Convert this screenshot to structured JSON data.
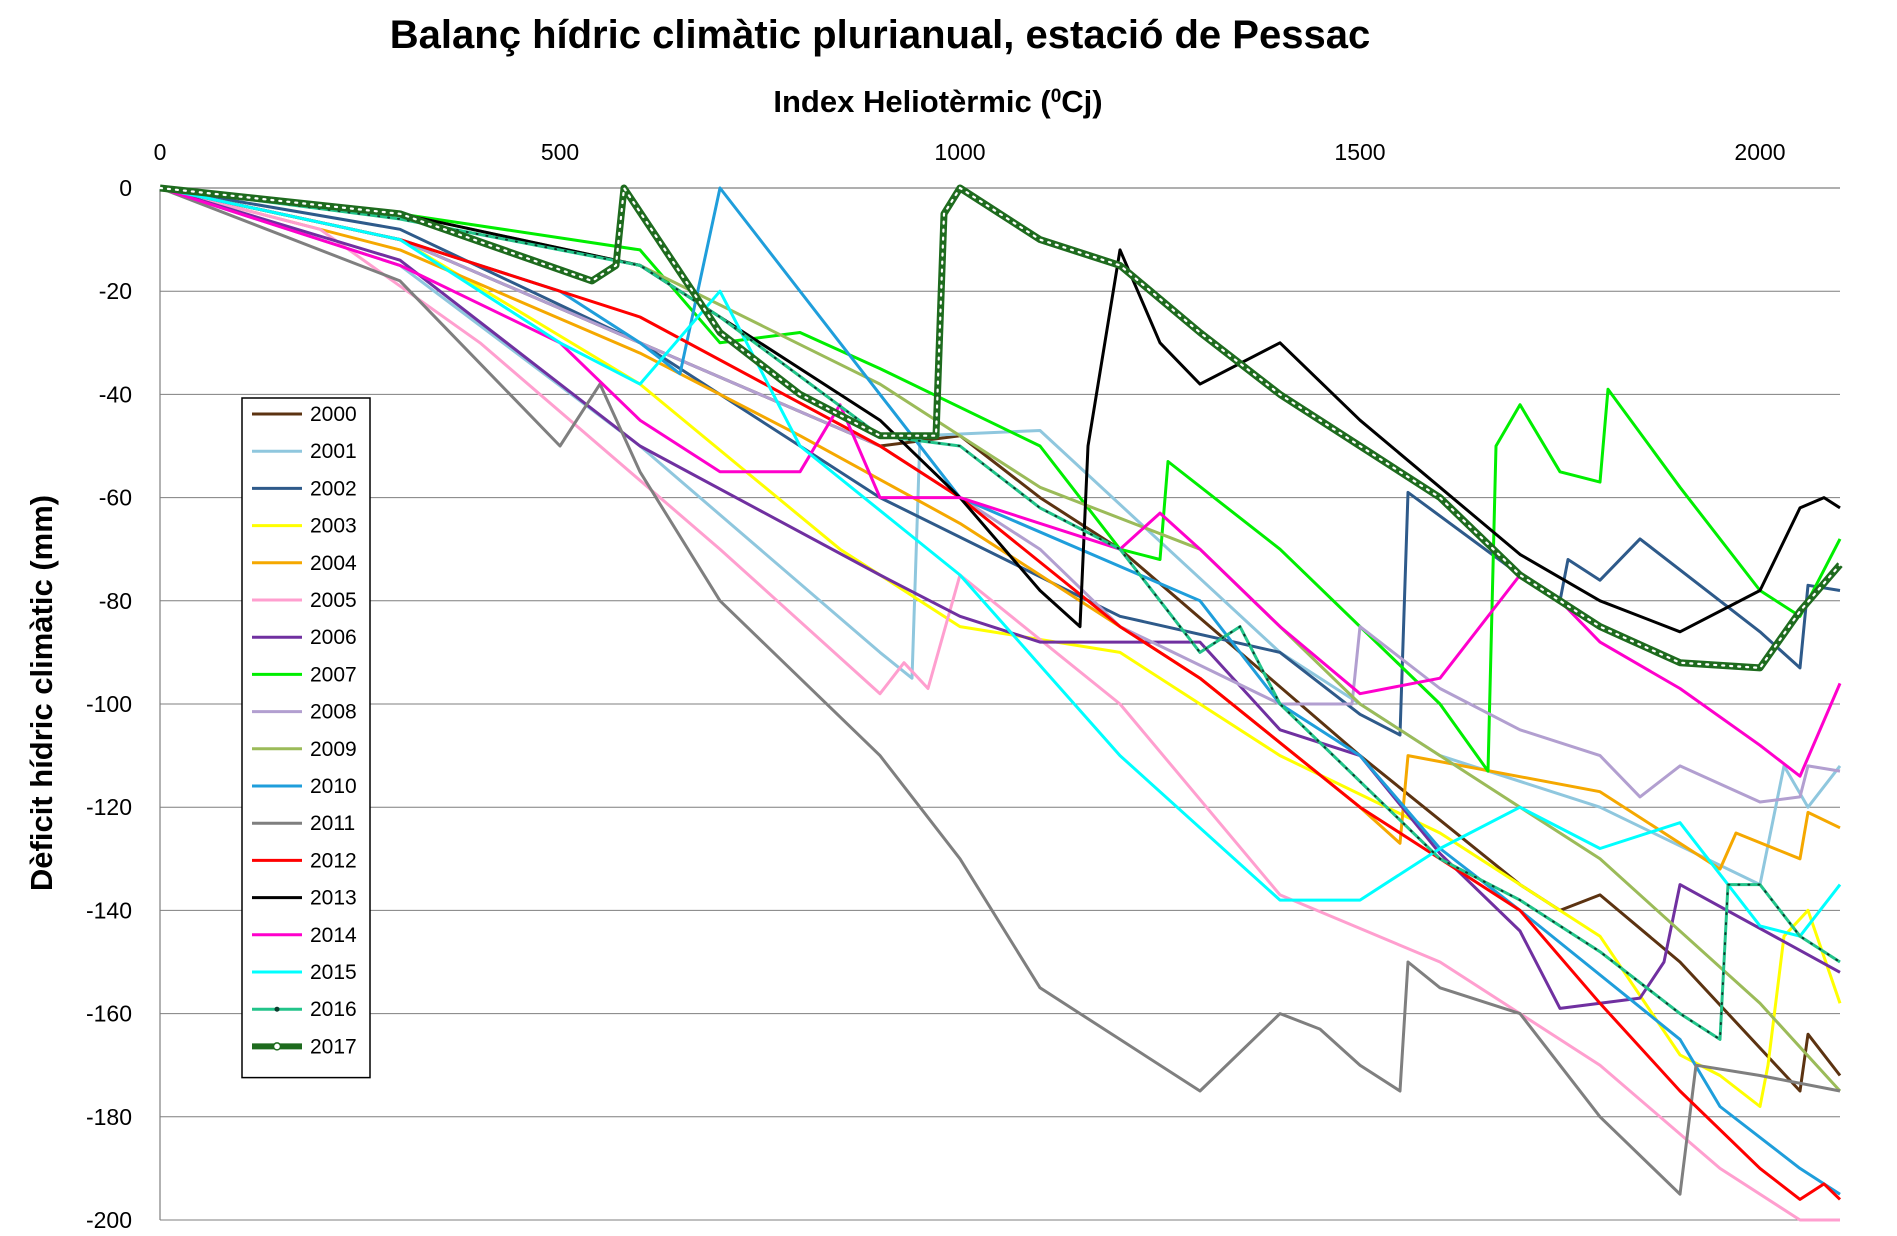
{
  "chart_data": {
    "type": "line",
    "title": "Balanç hídric climàtic plurianual, estació de Pessac",
    "xlabel": "Index Heliotèrmic (",
    "xlabel_sup": "0",
    "xlabel_tail": "Cj)",
    "ylabel": "Dèficit hídric climàtic (mm)",
    "x_axis_position": "top",
    "xlim": [
      0,
      2100
    ],
    "ylim": [
      -200,
      0
    ],
    "xticks": [
      "0",
      "500",
      "1000",
      "1500",
      "2000"
    ],
    "yticks": [
      "0",
      "-20",
      "-40",
      "-60",
      "-80",
      "-100",
      "-120",
      "-140",
      "-160",
      "-180",
      "-200"
    ],
    "grid": "horizontal",
    "legend_position": "left",
    "series": [
      {
        "name": "2000",
        "color": "#5c3311",
        "x": [
          0,
          300,
          600,
          900,
          1000,
          1100,
          1200,
          1500,
          1700,
          1750,
          1800,
          1900,
          2050,
          2060,
          2100
        ],
        "y": [
          0,
          -10,
          -30,
          -50,
          -48,
          -60,
          -70,
          -110,
          -135,
          -140,
          -137,
          -150,
          -175,
          -164,
          -172
        ]
      },
      {
        "name": "2001",
        "color": "#8fc7de",
        "x": [
          0,
          300,
          600,
          900,
          940,
          950,
          1100,
          1400,
          1600,
          1800,
          2000,
          2030,
          2060,
          2100
        ],
        "y": [
          0,
          -15,
          -50,
          -90,
          -95,
          -48,
          -47,
          -90,
          -110,
          -120,
          -135,
          -112,
          -120,
          -112
        ]
      },
      {
        "name": "2002",
        "color": "#2e5a8a",
        "x": [
          0,
          300,
          600,
          900,
          1200,
          1400,
          1500,
          1550,
          1560,
          1700,
          1750,
          1760,
          1800,
          1850,
          2000,
          2050,
          2060,
          2100
        ],
        "y": [
          0,
          -8,
          -30,
          -60,
          -83,
          -90,
          -102,
          -106,
          -59,
          -75,
          -80,
          -72,
          -76,
          -68,
          -86,
          -93,
          -77,
          -78
        ]
      },
      {
        "name": "2003",
        "color": "#ffff00",
        "x": [
          0,
          300,
          600,
          850,
          900,
          1000,
          1200,
          1400,
          1600,
          1800,
          1900,
          1950,
          2000,
          2010,
          2030,
          2060,
          2100
        ],
        "y": [
          0,
          -10,
          -38,
          -70,
          -75,
          -85,
          -90,
          -110,
          -125,
          -145,
          -168,
          -172,
          -178,
          -170,
          -145,
          -140,
          -158
        ]
      },
      {
        "name": "2004",
        "color": "#f5a800",
        "x": [
          0,
          300,
          600,
          800,
          1000,
          1200,
          1300,
          1500,
          1550,
          1560,
          1800,
          1950,
          1970,
          2050,
          2060,
          2100
        ],
        "y": [
          0,
          -12,
          -32,
          -48,
          -65,
          -85,
          -95,
          -120,
          -127,
          -110,
          -117,
          -132,
          -125,
          -130,
          -121,
          -124
        ]
      },
      {
        "name": "2005",
        "color": "#ff9fcf",
        "x": [
          0,
          200,
          400,
          700,
          900,
          930,
          960,
          1000,
          1200,
          1400,
          1600,
          1800,
          1950,
          2050,
          2100
        ],
        "y": [
          0,
          -8,
          -30,
          -70,
          -98,
          -92,
          -97,
          -75,
          -100,
          -137,
          -150,
          -170,
          -190,
          -200,
          -205
        ]
      },
      {
        "name": "2006",
        "color": "#7030a0",
        "x": [
          0,
          300,
          600,
          900,
          1000,
          1100,
          1300,
          1400,
          1500,
          1600,
          1700,
          1750,
          1850,
          1880,
          1900,
          2100
        ],
        "y": [
          0,
          -14,
          -50,
          -75,
          -83,
          -88,
          -88,
          -105,
          -110,
          -129,
          -144,
          -159,
          -157,
          -150,
          -135,
          -152
        ]
      },
      {
        "name": "2007",
        "color": "#00ee00",
        "x": [
          0,
          300,
          600,
          700,
          800,
          900,
          1100,
          1200,
          1250,
          1260,
          1400,
          1600,
          1660,
          1670,
          1700,
          1750,
          1800,
          1810,
          1900,
          2000,
          2050,
          2100
        ],
        "y": [
          0,
          -5,
          -12,
          -30,
          -28,
          -35,
          -50,
          -70,
          -72,
          -53,
          -70,
          -100,
          -113,
          -50,
          -42,
          -55,
          -57,
          -39,
          -58,
          -78,
          -83,
          -68
        ]
      },
      {
        "name": "2008",
        "color": "#b29fd0",
        "x": [
          0,
          300,
          600,
          900,
          1100,
          1200,
          1400,
          1490,
          1500,
          1600,
          1700,
          1800,
          1850,
          1900,
          2000,
          2050,
          2060,
          2100
        ],
        "y": [
          0,
          -10,
          -30,
          -50,
          -70,
          -85,
          -100,
          -100,
          -85,
          -97,
          -105,
          -110,
          -118,
          -112,
          -119,
          -118,
          -112,
          -113
        ]
      },
      {
        "name": "2009",
        "color": "#9bbb59",
        "x": [
          0,
          300,
          600,
          900,
          1000,
          1100,
          1300,
          1400,
          1500,
          1600,
          1800,
          2000,
          2100
        ],
        "y": [
          0,
          -5,
          -15,
          -38,
          -48,
          -58,
          -70,
          -85,
          -100,
          -110,
          -130,
          -158,
          -175
        ]
      },
      {
        "name": "2010",
        "color": "#1f9edb",
        "x": [
          0,
          300,
          500,
          600,
          650,
          700,
          900,
          1000,
          1300,
          1400,
          1500,
          1600,
          1700,
          1900,
          1950,
          2050,
          2100
        ],
        "y": [
          0,
          -10,
          -20,
          -30,
          -36,
          0,
          -40,
          -60,
          -80,
          -100,
          -110,
          -128,
          -140,
          -165,
          -178,
          -190,
          -195
        ]
      },
      {
        "name": "2011",
        "color": "#7f7f7f",
        "x": [
          0,
          300,
          500,
          550,
          600,
          700,
          900,
          1000,
          1100,
          1200,
          1300,
          1400,
          1450,
          1500,
          1550,
          1560,
          1600,
          1700,
          1800,
          1900,
          1920,
          2000,
          2100
        ],
        "y": [
          0,
          -18,
          -50,
          -38,
          -55,
          -80,
          -110,
          -130,
          -155,
          -165,
          -175,
          -160,
          -163,
          -170,
          -175,
          -150,
          -155,
          -160,
          -180,
          -195,
          -170,
          -172,
          -175
        ]
      },
      {
        "name": "2012",
        "color": "#ff0000",
        "x": [
          0,
          300,
          600,
          900,
          1000,
          1200,
          1300,
          1500,
          1600,
          1700,
          1800,
          1900,
          2000,
          2050,
          2080,
          2100
        ],
        "y": [
          0,
          -10,
          -25,
          -50,
          -60,
          -85,
          -95,
          -120,
          -130,
          -140,
          -158,
          -175,
          -190,
          -196,
          -193,
          -196
        ]
      },
      {
        "name": "2013",
        "color": "#000000",
        "x": [
          0,
          300,
          600,
          900,
          1000,
          1100,
          1150,
          1160,
          1200,
          1250,
          1300,
          1400,
          1500,
          1600,
          1700,
          1800,
          1900,
          2000,
          2050,
          2080,
          2100
        ],
        "y": [
          0,
          -5,
          -15,
          -45,
          -60,
          -78,
          -85,
          -50,
          -12,
          -30,
          -38,
          -30,
          -45,
          -58,
          -71,
          -80,
          -86,
          -78,
          -62,
          -60,
          -62
        ]
      },
      {
        "name": "2014",
        "color": "#ff00cc",
        "x": [
          0,
          300,
          500,
          600,
          700,
          800,
          850,
          900,
          1000,
          1200,
          1250,
          1300,
          1400,
          1500,
          1600,
          1700,
          1750,
          1800,
          1900,
          2000,
          2050,
          2100
        ],
        "y": [
          0,
          -15,
          -30,
          -45,
          -55,
          -55,
          -42,
          -60,
          -60,
          -70,
          -63,
          -70,
          -85,
          -98,
          -95,
          -75,
          -80,
          -88,
          -97,
          -108,
          -114,
          -96
        ]
      },
      {
        "name": "2015",
        "color": "#00ffff",
        "x": [
          0,
          300,
          500,
          600,
          700,
          800,
          1000,
          1200,
          1400,
          1500,
          1600,
          1700,
          1800,
          1900,
          2000,
          2050,
          2100
        ],
        "y": [
          0,
          -10,
          -30,
          -38,
          -20,
          -50,
          -75,
          -110,
          -138,
          -138,
          -128,
          -120,
          -128,
          -123,
          -143,
          -145,
          -135
        ]
      },
      {
        "name": "2016",
        "color": "#22c48a",
        "x": [
          0,
          300,
          600,
          700,
          900,
          1000,
          1100,
          1200,
          1300,
          1350,
          1400,
          1500,
          1600,
          1700,
          1800,
          1900,
          1950,
          1960,
          2000,
          2050,
          2100
        ],
        "y": [
          0,
          -6,
          -15,
          -25,
          -48,
          -50,
          -62,
          -70,
          -90,
          -85,
          -100,
          -115,
          -130,
          -138,
          -148,
          -160,
          -165,
          -135,
          -135,
          -145,
          -150
        ]
      },
      {
        "name": "2017",
        "color": "#1e6b1e",
        "x": [
          0,
          300,
          540,
          570,
          580,
          700,
          800,
          900,
          970,
          980,
          1000,
          1100,
          1200,
          1300,
          1400,
          1500,
          1600,
          1700,
          1800,
          1900,
          2000,
          2050,
          2100
        ],
        "y": [
          0,
          -5,
          -18,
          -15,
          0,
          -28,
          -40,
          -48,
          -48,
          -5,
          0,
          -10,
          -15,
          -28,
          -40,
          -50,
          -60,
          -75,
          -85,
          -92,
          -93,
          -82,
          -73
        ]
      }
    ]
  }
}
